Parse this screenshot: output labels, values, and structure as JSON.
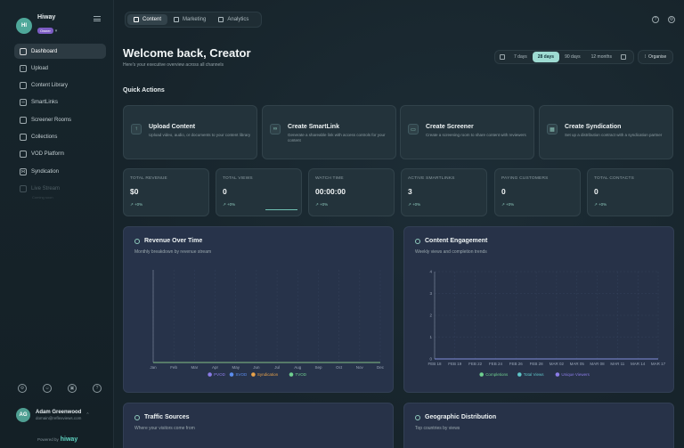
{
  "brand": {
    "initials": "HI",
    "name": "Hiway",
    "badge": "Owner"
  },
  "sidebar": {
    "items": [
      {
        "label": "Dashboard",
        "icon": "dashboard-icon",
        "active": true
      },
      {
        "label": "Upload",
        "icon": "upload-icon"
      },
      {
        "label": "Content Library",
        "icon": "library-icon"
      },
      {
        "label": "SmartLinks",
        "icon": "link-icon"
      },
      {
        "label": "Screener Rooms",
        "icon": "screen-icon"
      },
      {
        "label": "Collections",
        "icon": "folder-icon"
      },
      {
        "label": "VOD Platform",
        "icon": "tv-icon"
      },
      {
        "label": "Syndication",
        "icon": "share-icon"
      },
      {
        "label": "Live Stream",
        "icon": "broadcast-icon",
        "disabled": true
      }
    ],
    "live_sub": "Coming soon"
  },
  "user": {
    "initials": "AG",
    "name": "Adam Greenwood",
    "email": "domain@reflexviews.com"
  },
  "powered": {
    "label": "Powered by",
    "brand": "hiway"
  },
  "topnav": {
    "tabs": [
      "Content",
      "Marketing",
      "Analytics"
    ],
    "active": "Content"
  },
  "header": {
    "title": "Welcome back, Creator",
    "subtitle": "Here's your executive overview across all channels"
  },
  "ranges": {
    "options": [
      "7 days",
      "28 days",
      "90 days",
      "12 months"
    ],
    "active": "28 days"
  },
  "organise_label": "Organise",
  "quick_actions": {
    "title": "Quick Actions",
    "cards": [
      {
        "title": "Upload Content",
        "desc": "Upload video, audio, or documents to your content library",
        "icon": "upload-icon"
      },
      {
        "title": "Create SmartLink",
        "desc": "Generate a shareable link with access controls for your content",
        "icon": "link-icon"
      },
      {
        "title": "Create Screener",
        "desc": "Create a screening room to share content with reviewers",
        "icon": "screen-icon"
      },
      {
        "title": "Create Syndication",
        "desc": "Set up a distribution contract with a syndication partner",
        "icon": "building-icon"
      }
    ]
  },
  "stats": [
    {
      "label": "TOTAL REVENUE",
      "value": "$0",
      "change": "+0%"
    },
    {
      "label": "TOTAL VIEWS",
      "value": "0",
      "change": "+0%"
    },
    {
      "label": "WATCH TIME",
      "value": "00:00:00",
      "change": "+0%"
    },
    {
      "label": "ACTIVE SMARTLINKS",
      "value": "3",
      "change": "+0%"
    },
    {
      "label": "PAYING CUSTOMERS",
      "value": "0",
      "change": "+0%"
    },
    {
      "label": "TOTAL CONTACTS",
      "value": "0",
      "change": "+0%"
    }
  ],
  "revenue_panel": {
    "title": "Revenue Over Time",
    "subtitle": "Monthly breakdown by revenue stream"
  },
  "engagement_panel": {
    "title": "Content Engagement",
    "subtitle": "Weekly views and completion trends"
  },
  "traffic_panel": {
    "title": "Traffic Sources",
    "subtitle": "Where your visitors come from"
  },
  "geo_panel": {
    "title": "Geographic Distribution",
    "subtitle": "Top countries by views"
  },
  "chart_data": [
    {
      "type": "line",
      "categories": [
        "Jan",
        "Feb",
        "Mar",
        "Apr",
        "May",
        "Jun",
        "Jul",
        "Aug",
        "Sep",
        "Oct",
        "Nov",
        "Dec"
      ],
      "series": [
        {
          "name": "PVOD",
          "values": [
            0,
            0,
            0,
            0,
            0,
            0,
            0,
            0,
            0,
            0,
            0,
            0
          ],
          "color": "#8b7ce8"
        },
        {
          "name": "SVOD",
          "values": [
            0,
            0,
            0,
            0,
            0,
            0,
            0,
            0,
            0,
            0,
            0,
            0
          ],
          "color": "#5b8def"
        },
        {
          "name": "Syndication",
          "values": [
            0,
            0,
            0,
            0,
            0,
            0,
            0,
            0,
            0,
            0,
            0,
            0
          ],
          "color": "#e8a24a"
        },
        {
          "name": "TVOD",
          "values": [
            0,
            0,
            0,
            0,
            0,
            0,
            0,
            0,
            0,
            0,
            0,
            0
          ],
          "color": "#6fcf8f"
        }
      ],
      "grid": true
    },
    {
      "type": "line",
      "categories": [
        "FEB 18",
        "FEB 19",
        "FEB 22",
        "FEB 24",
        "FEB 26",
        "FEB 28",
        "MAR 02",
        "MAR 05",
        "MAR 08",
        "MAR 11",
        "MAR 14",
        "MAR 17"
      ],
      "series": [
        {
          "name": "Completions",
          "values": [
            0,
            0,
            0,
            0,
            0,
            0,
            0,
            0,
            0,
            0,
            0,
            0
          ],
          "color": "#6fcf8f"
        },
        {
          "name": "Total Views",
          "values": [
            0,
            0,
            0,
            0,
            0,
            0,
            0,
            0,
            0,
            0,
            0,
            0
          ],
          "color": "#5fc6c9"
        },
        {
          "name": "Unique Viewers",
          "values": [
            0,
            0,
            0,
            0,
            0,
            0,
            0,
            0,
            0,
            0,
            0,
            0
          ],
          "color": "#8b7ce8"
        }
      ],
      "yticks": [
        "0",
        "1",
        "2",
        "3",
        "4"
      ],
      "ylim": [
        0,
        4
      ],
      "grid": true
    }
  ]
}
